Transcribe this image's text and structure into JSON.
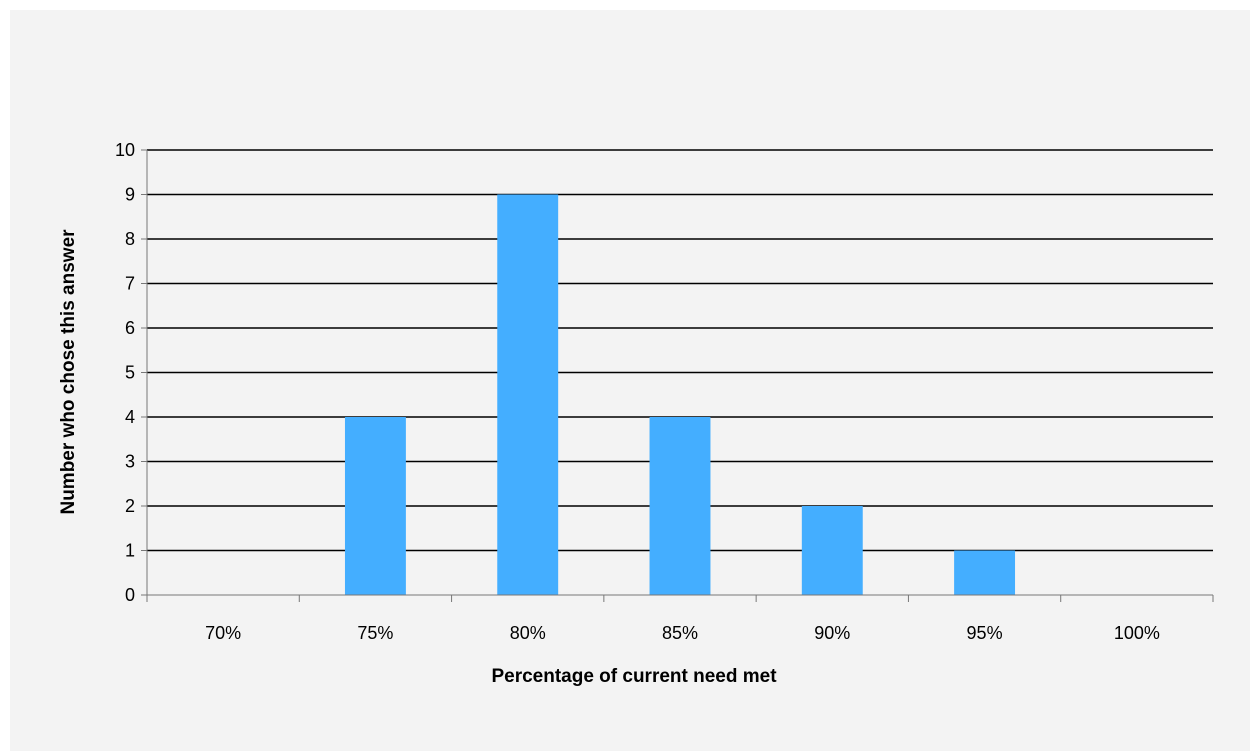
{
  "chart_data": {
    "type": "bar",
    "title": "",
    "xlabel": "Percentage of current need met",
    "ylabel": "Number who chose this answer",
    "categories": [
      "70%",
      "75%",
      "80%",
      "85%",
      "90%",
      "95%",
      "100%"
    ],
    "values": [
      0,
      4,
      9,
      4,
      2,
      1,
      0
    ],
    "ylim": [
      0,
      10
    ],
    "yticks": [
      "0",
      "1",
      "2",
      "3",
      "4",
      "5",
      "6",
      "7",
      "8",
      "9",
      "10"
    ],
    "grid": true,
    "legend": "none",
    "bar_color": "#44aeff",
    "background_color": "#f3f3f3"
  }
}
